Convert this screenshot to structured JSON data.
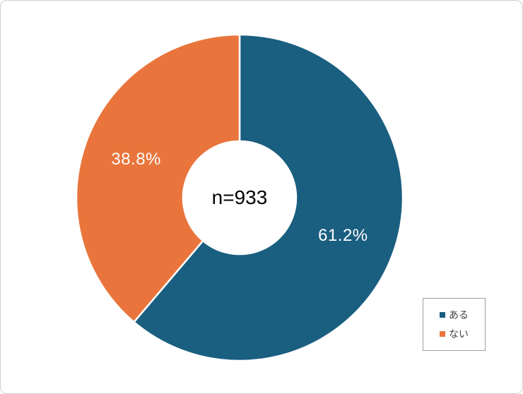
{
  "chart_data": {
    "type": "pie",
    "subtype": "donut",
    "categories": [
      "ある",
      "ない"
    ],
    "values": [
      61.2,
      38.8
    ],
    "data_labels": [
      "61.2%",
      "38.8%"
    ],
    "center_label": "n=933",
    "series_colors": [
      "#1A5E80",
      "#E9753C"
    ],
    "start_angle_deg": 0,
    "direction": "clockwise",
    "legend_position": "bottom-right",
    "separator_color": "#ffffff"
  },
  "legend": {
    "items": [
      {
        "label": "ある",
        "color": "#1A5E80"
      },
      {
        "label": "ない",
        "color": "#E9753C"
      }
    ]
  }
}
